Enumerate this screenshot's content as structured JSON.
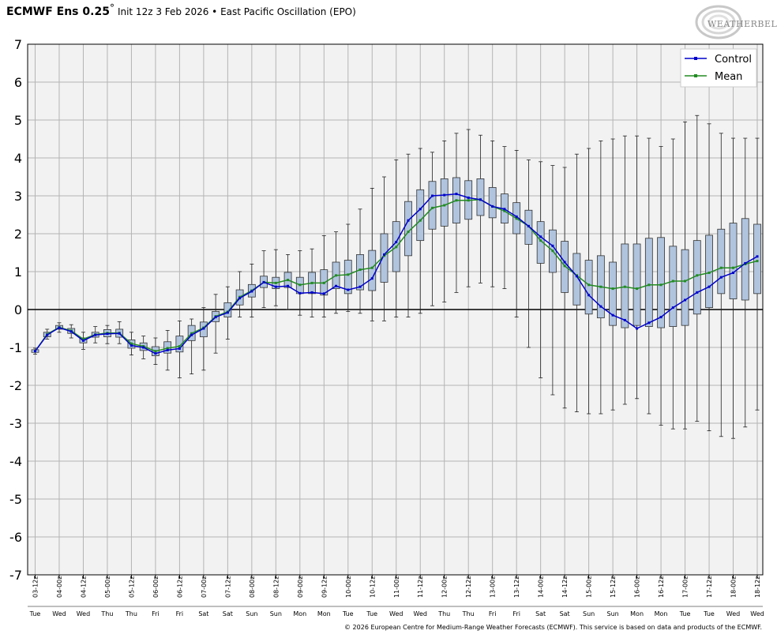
{
  "header": {
    "title_bold": "ECMWF Ens 0.25",
    "degree": "°",
    "subtitle": "Init 12z 3 Feb 2026 • East Pacific Oscillation (EPO)"
  },
  "logo": {
    "text": "WEATHERBELL",
    "icon": "weatherbell-swirl-icon"
  },
  "footer": {
    "copyright": "© 2026 European Centre for Medium-Range Weather Forecasts (ECMWF). This service is based on data and products of the ECMWF."
  },
  "colors": {
    "plot_bg": "#f2f2f2",
    "grid": "#b4b4b4",
    "box_fill": "#b0c4de",
    "control": "#0000cd",
    "mean": "#228b22"
  },
  "chart_data": {
    "type": "box-and-line",
    "title": "East Pacific Oscillation (EPO)",
    "xlabel": "",
    "ylabel": "",
    "ylim": [
      -7,
      7
    ],
    "yticks": [
      -7,
      -6,
      -5,
      -4,
      -3,
      -2,
      -1,
      0,
      1,
      2,
      3,
      4,
      5,
      6,
      7
    ],
    "grid": true,
    "legend": {
      "position": "top-right",
      "entries": [
        "Control",
        "Mean"
      ]
    },
    "x_labels": [
      "03-12z",
      "04-00z",
      "04-12z",
      "05-00z",
      "05-12z",
      "06-00z",
      "06-12z",
      "07-00z",
      "07-12z",
      "08-00z",
      "08-12z",
      "09-00z",
      "09-12z",
      "10-00z",
      "10-12z",
      "11-00z",
      "11-12z",
      "12-00z",
      "12-12z",
      "13-00z",
      "13-12z",
      "14-00z",
      "14-12z",
      "15-00z",
      "15-12z",
      "16-00z",
      "16-12z",
      "17-00z",
      "17-12z",
      "18-00z",
      "18-12z"
    ],
    "day_labels": [
      "Tue",
      "Wed",
      "Wed",
      "Thu",
      "Thu",
      "Fri",
      "Fri",
      "Sat",
      "Sat",
      "Sun",
      "Sun",
      "Mon",
      "Mon",
      "Tue",
      "Tue",
      "Wed",
      "Wed",
      "Thu",
      "Thu",
      "Fri",
      "Fri",
      "Sat",
      "Sat",
      "Sun",
      "Sun",
      "Mon",
      "Mon",
      "Tue",
      "Tue",
      "Wed",
      "Wed"
    ],
    "series": [
      {
        "name": "Control",
        "values": [
          -1.1,
          -0.67,
          -0.48,
          -0.58,
          -0.82,
          -0.67,
          -0.64,
          -0.63,
          -0.95,
          -1.0,
          -1.16,
          -1.07,
          -1.03,
          -0.67,
          -0.5,
          -0.2,
          -0.08,
          0.3,
          0.48,
          0.72,
          0.6,
          0.62,
          0.43,
          0.45,
          0.42,
          0.62,
          0.52,
          0.6,
          0.82,
          1.45,
          1.78,
          2.35,
          2.65,
          3.0,
          3.02,
          3.05,
          2.95,
          2.9,
          2.72,
          2.65,
          2.45,
          2.2,
          1.92,
          1.68,
          1.25,
          0.88,
          0.38,
          0.08,
          -0.15,
          -0.28,
          -0.5,
          -0.35,
          -0.2,
          0.05,
          0.25,
          0.45,
          0.6,
          0.85,
          0.97,
          1.22,
          1.4
        ]
      },
      {
        "name": "Mean",
        "values": [
          -1.1,
          -0.65,
          -0.47,
          -0.56,
          -0.78,
          -0.66,
          -0.62,
          -0.62,
          -0.9,
          -0.97,
          -1.1,
          -1.02,
          -0.97,
          -0.63,
          -0.48,
          -0.18,
          -0.06,
          0.33,
          0.5,
          0.72,
          0.7,
          0.78,
          0.65,
          0.7,
          0.7,
          0.9,
          0.92,
          1.05,
          1.1,
          1.42,
          1.65,
          2.05,
          2.35,
          2.68,
          2.75,
          2.88,
          2.88,
          2.9,
          2.72,
          2.6,
          2.4,
          2.2,
          1.82,
          1.55,
          1.15,
          0.9,
          0.65,
          0.6,
          0.55,
          0.6,
          0.55,
          0.65,
          0.65,
          0.75,
          0.75,
          0.9,
          0.97,
          1.1,
          1.1,
          1.2,
          1.28
        ]
      },
      {
        "name": "Ensemble box",
        "q1": [
          -1.13,
          -0.72,
          -0.52,
          -0.63,
          -0.88,
          -0.73,
          -0.72,
          -0.73,
          -1.02,
          -1.08,
          -1.22,
          -1.15,
          -1.12,
          -0.82,
          -0.72,
          -0.32,
          -0.2,
          0.12,
          0.33,
          0.58,
          0.55,
          0.58,
          0.42,
          0.42,
          0.38,
          0.55,
          0.42,
          0.52,
          0.5,
          0.72,
          1.0,
          1.42,
          1.82,
          2.12,
          2.2,
          2.28,
          2.38,
          2.48,
          2.42,
          2.28,
          2.0,
          1.72,
          1.22,
          0.98,
          0.45,
          0.12,
          -0.12,
          -0.22,
          -0.42,
          -0.48,
          -0.42,
          -0.45,
          -0.48,
          -0.45,
          -0.42,
          -0.12,
          0.05,
          0.42,
          0.28,
          0.25,
          0.42
        ],
        "q3": [
          -1.06,
          -0.6,
          -0.42,
          -0.5,
          -0.75,
          -0.6,
          -0.53,
          -0.52,
          -0.8,
          -0.88,
          -0.98,
          -0.85,
          -0.7,
          -0.42,
          -0.33,
          -0.05,
          0.18,
          0.52,
          0.66,
          0.88,
          0.85,
          0.98,
          0.85,
          0.98,
          1.05,
          1.25,
          1.3,
          1.45,
          1.56,
          2.0,
          2.32,
          2.85,
          3.16,
          3.38,
          3.45,
          3.48,
          3.4,
          3.45,
          3.22,
          3.05,
          2.82,
          2.62,
          2.32,
          2.1,
          1.8,
          1.48,
          1.3,
          1.42,
          1.25,
          1.73,
          1.73,
          1.88,
          1.9,
          1.67,
          1.58,
          1.82,
          1.96,
          2.12,
          2.28,
          2.4,
          2.25
        ],
        "min": [
          -1.18,
          -0.78,
          -0.6,
          -0.75,
          -1.05,
          -0.88,
          -0.9,
          -0.9,
          -1.2,
          -1.3,
          -1.45,
          -1.6,
          -1.8,
          -1.7,
          -1.6,
          -1.15,
          -0.78,
          -0.2,
          -0.2,
          0.05,
          0.1,
          0.0,
          -0.15,
          -0.2,
          -0.2,
          -0.1,
          -0.05,
          -0.1,
          -0.3,
          -0.3,
          -0.2,
          -0.2,
          -0.1,
          0.1,
          0.2,
          0.45,
          0.6,
          0.7,
          0.6,
          0.55,
          -0.2,
          -1.0,
          -1.8,
          -2.25,
          -2.6,
          -2.7,
          -2.75,
          -2.75,
          -2.65,
          -2.5,
          -2.35,
          -2.75,
          -3.05,
          -3.15,
          -3.15,
          -2.95,
          -3.2,
          -3.35,
          -3.4,
          -3.1,
          -2.65
        ],
        "max": [
          -1.02,
          -0.52,
          -0.35,
          -0.4,
          -0.6,
          -0.45,
          -0.42,
          -0.32,
          -0.6,
          -0.7,
          -0.75,
          -0.55,
          -0.3,
          -0.25,
          0.05,
          0.4,
          0.6,
          1.0,
          1.2,
          1.55,
          1.58,
          1.45,
          1.55,
          1.6,
          1.95,
          2.05,
          2.25,
          2.65,
          3.2,
          3.5,
          3.95,
          4.1,
          4.25,
          4.15,
          4.45,
          4.65,
          4.75,
          4.6,
          4.45,
          4.3,
          4.2,
          3.95,
          3.9,
          3.8,
          3.75,
          4.1,
          4.25,
          4.45,
          4.5,
          4.58,
          4.58,
          4.52,
          4.3,
          4.5,
          4.95,
          5.12,
          4.9,
          4.65,
          4.52,
          4.52,
          4.52
        ]
      }
    ]
  }
}
